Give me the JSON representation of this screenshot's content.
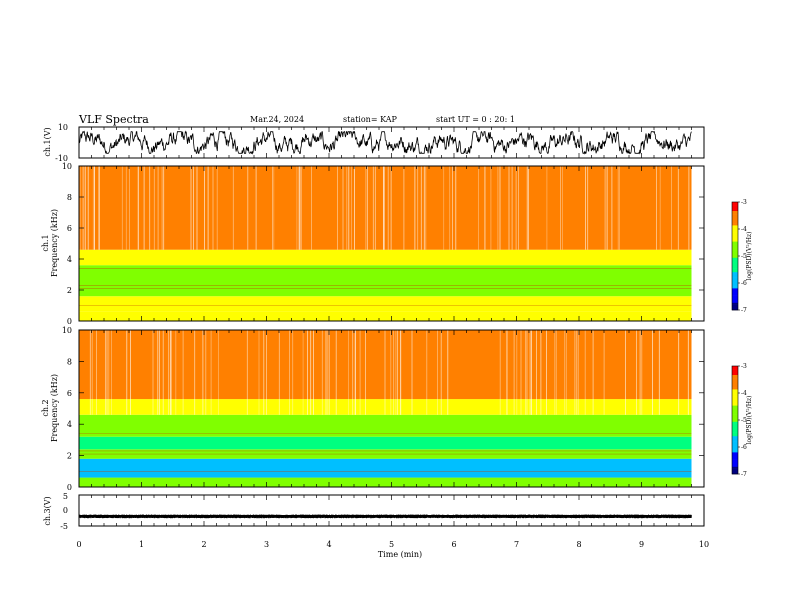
{
  "header": {
    "title": "VLF Spectra",
    "date": "Mar.24, 2024",
    "station": "station= KAP",
    "start": "start UT =  0 : 20: 1"
  },
  "chart_data": [
    {
      "type": "line",
      "panel": "ch1-waveform",
      "ylabel": "ch.1(V)",
      "ylim": [
        -10,
        10
      ],
      "yticks": [
        "10",
        "-10"
      ],
      "xlim": [
        0,
        10
      ],
      "description_values": "noisy waveform between about -7 and 7 V, t = 0 to 9.8 min"
    },
    {
      "type": "heatmap",
      "panel": "ch1-spectrogram",
      "ylabel": "ch.1\nFrequency (kHz)",
      "ylim": [
        0,
        10
      ],
      "yticks": [
        "0",
        "2",
        "4",
        "6",
        "8",
        "10"
      ],
      "xlim": [
        0,
        10
      ],
      "data_end_min": 9.8,
      "bands": [
        {
          "from": 0,
          "to": 0.6,
          "level": -4.2
        },
        {
          "from": 0.6,
          "to": 1.6,
          "level": -4.0
        },
        {
          "from": 1.6,
          "to": 3.6,
          "level": -4.9
        },
        {
          "from": 3.6,
          "to": 4.6,
          "level": -4.4
        },
        {
          "from": 4.6,
          "to": 10,
          "level": -3.6
        }
      ],
      "colorbar": {
        "label": "log(PSD)(V²/Hz)",
        "range": [
          -7,
          -3
        ],
        "ticks": [
          "-3",
          "-4",
          "-5",
          "-6",
          "-7"
        ]
      }
    },
    {
      "type": "heatmap",
      "panel": "ch2-spectrogram",
      "ylabel": "ch.2\nFrequency (kHz)",
      "ylim": [
        0,
        10
      ],
      "yticks": [
        "0",
        "2",
        "4",
        "6",
        "8",
        "10"
      ],
      "xlim": [
        0,
        10
      ],
      "data_end_min": 9.8,
      "bands": [
        {
          "from": 0,
          "to": 0.6,
          "level": -4.5
        },
        {
          "from": 0.6,
          "to": 1.8,
          "level": -5.7
        },
        {
          "from": 1.8,
          "to": 2.4,
          "level": -4.9
        },
        {
          "from": 2.4,
          "to": 3.2,
          "level": -5.5
        },
        {
          "from": 3.2,
          "to": 4.6,
          "level": -4.8
        },
        {
          "from": 4.6,
          "to": 5.6,
          "level": -4.2
        },
        {
          "from": 5.6,
          "to": 10,
          "level": -3.7
        }
      ],
      "colorbar": {
        "label": "log(PSD)(V²/Hz)",
        "range": [
          -7,
          -3
        ],
        "ticks": [
          "-3",
          "-4",
          "-5",
          "-6",
          "-7"
        ]
      }
    },
    {
      "type": "line",
      "panel": "ch3-waveform",
      "ylabel": "ch.3(V)",
      "ylim": [
        -5,
        5
      ],
      "yticks": [
        "5",
        "0",
        "-5"
      ],
      "xlim": [
        0,
        10
      ],
      "xticks": [
        "0",
        "1",
        "2",
        "3",
        "4",
        "5",
        "6",
        "7",
        "8",
        "9",
        "10"
      ],
      "xlabel": "Time (min)",
      "description_values": "dense oscillation between about -2.4 and -1.4 V"
    }
  ],
  "colors": {
    "colormap": [
      "#000080",
      "#0000ff",
      "#00bfff",
      "#00ff80",
      "#80ff00",
      "#ffff00",
      "#ff8000",
      "#ff0000",
      "#ffffff"
    ]
  }
}
